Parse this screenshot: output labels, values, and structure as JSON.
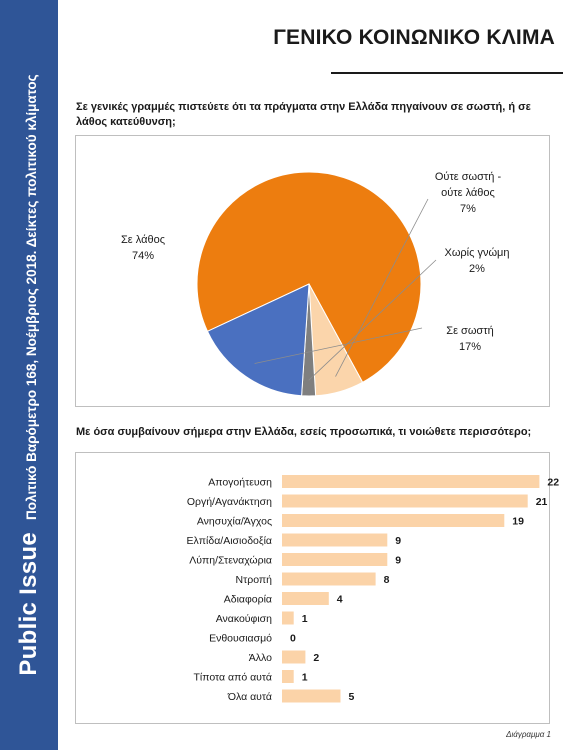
{
  "sidebar": {
    "brand": "Public Issue",
    "subtitle": "Πολιτικό Βαρόμετρο 168, Νοέμβριος 2018. Δείκτες πολιτικού κλίματος"
  },
  "header": {
    "title": "ΓΕΝΙΚΟ ΚΟΙΝΩΝΙΚΟ ΚΛΙΜΑ"
  },
  "questions": {
    "q1": "Σε γενικές γραμμές πιστεύετε ότι τα πράγματα στην Ελλάδα πηγαίνουν σε σωστή, ή σε λάθος κατεύθυνση;",
    "q2": "Με όσα συμβαίνουν σήμερα στην Ελλάδα, εσείς προσωπικά, τι νοιώθετε περισσότερο;"
  },
  "footer": "Διάγραμμα 1",
  "colors": {
    "sidebar": "#2f5597",
    "bar": "#fbd3a8",
    "wrong": "#ed7d0f",
    "neither": "#fbd5ab",
    "no_opinion": "#7f7f7f",
    "right": "#4a70c0"
  },
  "chart_data": [
    {
      "type": "pie",
      "slices": [
        {
          "label_lines": [
            "Σε λάθος"
          ],
          "value": 74,
          "value_label": "74%",
          "color": "#ed7d0f"
        },
        {
          "label_lines": [
            "Ούτε σωστή -",
            "ούτε λάθος"
          ],
          "value": 7,
          "value_label": "7%",
          "color": "#fbd5ab"
        },
        {
          "label_lines": [
            "Χωρίς γνώμη"
          ],
          "value": 2,
          "value_label": "2%",
          "color": "#7f7f7f"
        },
        {
          "label_lines": [
            "Σε σωστή"
          ],
          "value": 17,
          "value_label": "17%",
          "color": "#4a70c0"
        }
      ]
    },
    {
      "type": "bar",
      "orientation": "horizontal",
      "categories": [
        "Απογοήτευση",
        "Οργή/Αγανάκτηση",
        "Ανησυχία/Άγχος",
        "Ελπίδα/Αισιοδοξία",
        "Λύπη/Στεναχώρια",
        "Ντροπή",
        "Αδιαφορία",
        "Ανακούφιση",
        "Ενθουσιασμό",
        "Άλλο",
        "Τίποτα από αυτά",
        "Όλα αυτά"
      ],
      "values": [
        22,
        21,
        19,
        9,
        9,
        8,
        4,
        1,
        0,
        2,
        1,
        5
      ],
      "color": "#fbd3a8"
    }
  ]
}
